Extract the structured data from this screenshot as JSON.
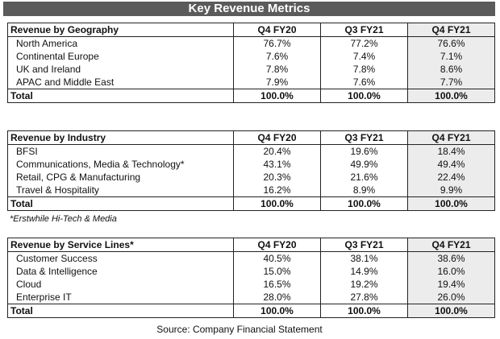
{
  "title": "Key Revenue Metrics",
  "columns": [
    "Q4 FY20",
    "Q3 FY21",
    "Q4 FY21"
  ],
  "geography": {
    "header": "Revenue by Geography",
    "rows": [
      {
        "label": "North America",
        "v": [
          "76.7%",
          "77.2%",
          "76.6%"
        ]
      },
      {
        "label": "Continental Europe",
        "v": [
          "7.6%",
          "7.4%",
          "7.1%"
        ]
      },
      {
        "label": "UK and Ireland",
        "v": [
          "7.8%",
          "7.8%",
          "8.6%"
        ]
      },
      {
        "label": "APAC and Middle East",
        "v": [
          "7.9%",
          "7.6%",
          "7.7%"
        ]
      }
    ],
    "total": {
      "label": "Total",
      "v": [
        "100.0%",
        "100.0%",
        "100.0%"
      ]
    }
  },
  "industry": {
    "header": "Revenue by Industry",
    "rows": [
      {
        "label": "BFSI",
        "v": [
          "20.4%",
          "19.6%",
          "18.4%"
        ]
      },
      {
        "label": "Communications, Media & Technology*",
        "v": [
          "43.1%",
          "49.9%",
          "49.4%"
        ]
      },
      {
        "label": "Retail, CPG & Manufacturing",
        "v": [
          "20.3%",
          "21.6%",
          "22.4%"
        ]
      },
      {
        "label": "Travel & Hospitality",
        "v": [
          "16.2%",
          "8.9%",
          "9.9%"
        ]
      }
    ],
    "total": {
      "label": "Total",
      "v": [
        "100.0%",
        "100.0%",
        "100.0%"
      ]
    },
    "footnote": "*Erstwhile Hi-Tech & Media"
  },
  "service": {
    "header": "Revenue by Service Lines*",
    "rows": [
      {
        "label": "Customer Success",
        "v": [
          "40.5%",
          "38.1%",
          "38.6%"
        ]
      },
      {
        "label": "Data & Intelligence",
        "v": [
          "15.0%",
          "14.9%",
          "16.0%"
        ]
      },
      {
        "label": "Cloud",
        "v": [
          "16.5%",
          "19.2%",
          "19.4%"
        ]
      },
      {
        "label": "Enterprise IT",
        "v": [
          "28.0%",
          "27.8%",
          "26.0%"
        ]
      }
    ],
    "total": {
      "label": "Total",
      "v": [
        "100.0%",
        "100.0%",
        "100.0%"
      ]
    }
  },
  "source": "Source: Company Financial Statement",
  "colors": {
    "title_bg": "#5b5b5b",
    "shade": "#ececec"
  }
}
